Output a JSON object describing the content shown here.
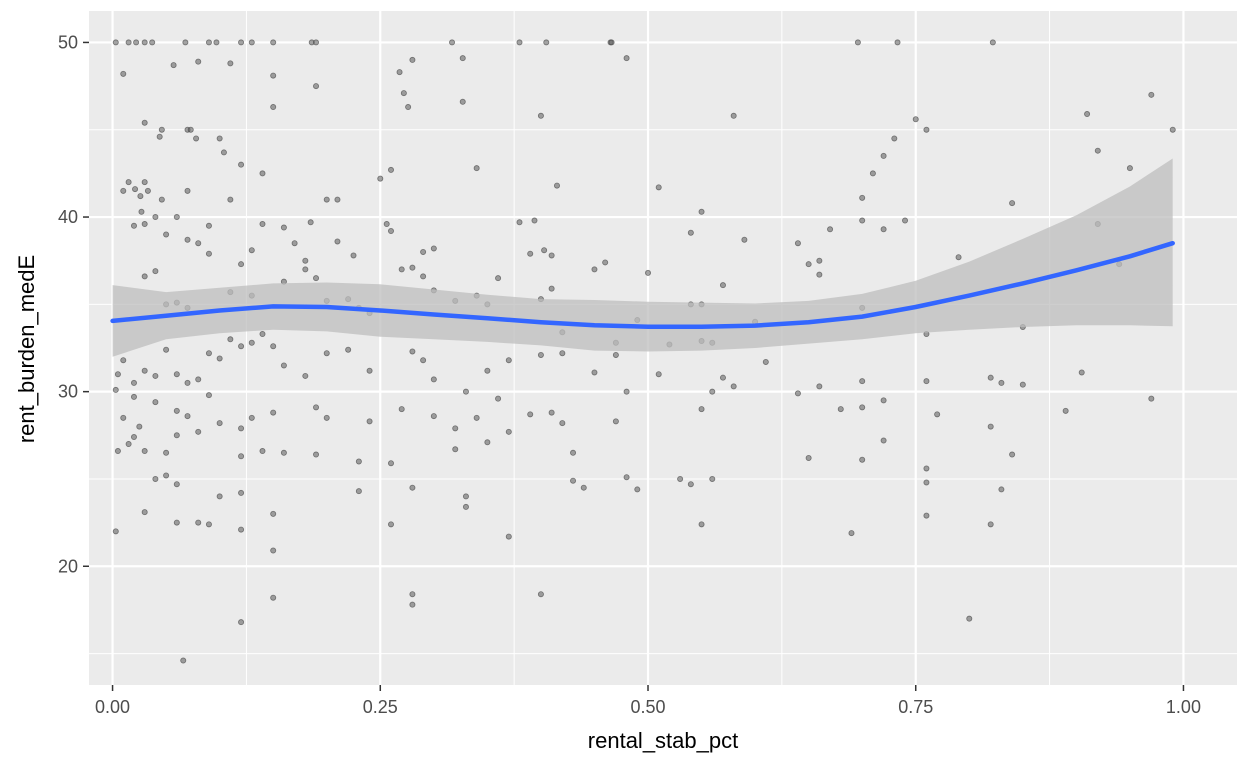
{
  "chart_data": {
    "type": "scatter",
    "title": "",
    "xlabel": "rental_stab_pct",
    "ylabel": "rent_burden_medE",
    "xlim": [
      -0.022,
      1.05
    ],
    "ylim": [
      13.2,
      51.8
    ],
    "x_ticks": [
      0,
      0.25,
      0.5,
      0.75,
      1
    ],
    "x_tick_labels": [
      "0.00",
      "0.25",
      "0.50",
      "0.75",
      "1.00"
    ],
    "y_ticks": [
      20,
      30,
      40,
      50
    ],
    "y_tick_labels": [
      "20",
      "30",
      "40",
      "50"
    ],
    "grid": true,
    "legend": "none",
    "colors": {
      "panel": "#ebebeb",
      "grid": "#ffffff",
      "points": "#595959",
      "smooth_line": "#3366ff",
      "ribbon": "#bebebe"
    },
    "points": [
      [
        0.003,
        50
      ],
      [
        0.015,
        50
      ],
      [
        0.022,
        50
      ],
      [
        0.03,
        50
      ],
      [
        0.037,
        50
      ],
      [
        0.068,
        50
      ],
      [
        0.09,
        50
      ],
      [
        0.097,
        50
      ],
      [
        0.12,
        50
      ],
      [
        0.13,
        50
      ],
      [
        0.15,
        50
      ],
      [
        0.186,
        50
      ],
      [
        0.19,
        50
      ],
      [
        0.317,
        50
      ],
      [
        0.38,
        50
      ],
      [
        0.405,
        50
      ],
      [
        0.465,
        50
      ],
      [
        0.466,
        50
      ],
      [
        0.696,
        50
      ],
      [
        0.733,
        50
      ],
      [
        0.822,
        50
      ],
      [
        0.01,
        48.2
      ],
      [
        0.057,
        48.7
      ],
      [
        0.08,
        48.9
      ],
      [
        0.11,
        48.8
      ],
      [
        0.15,
        48.1
      ],
      [
        0.19,
        47.5
      ],
      [
        0.268,
        48.3
      ],
      [
        0.28,
        49
      ],
      [
        0.327,
        49.1
      ],
      [
        0.48,
        49.1
      ],
      [
        0.97,
        47
      ],
      [
        0.03,
        45.4
      ],
      [
        0.044,
        44.6
      ],
      [
        0.046,
        45
      ],
      [
        0.07,
        45
      ],
      [
        0.073,
        45
      ],
      [
        0.078,
        44.5
      ],
      [
        0.1,
        44.5
      ],
      [
        0.104,
        43.7
      ],
      [
        0.12,
        43
      ],
      [
        0.15,
        46.3
      ],
      [
        0.272,
        47.1
      ],
      [
        0.276,
        46.3
      ],
      [
        0.327,
        46.6
      ],
      [
        0.4,
        45.8
      ],
      [
        0.58,
        45.8
      ],
      [
        0.75,
        45.6
      ],
      [
        0.76,
        45
      ],
      [
        0.91,
        45.9
      ],
      [
        0.99,
        45
      ],
      [
        0.01,
        41.5
      ],
      [
        0.015,
        42
      ],
      [
        0.021,
        41.6
      ],
      [
        0.026,
        41.2
      ],
      [
        0.027,
        40.3
      ],
      [
        0.03,
        42
      ],
      [
        0.033,
        41.5
      ],
      [
        0.04,
        40
      ],
      [
        0.046,
        41
      ],
      [
        0.06,
        40
      ],
      [
        0.07,
        41.5
      ],
      [
        0.09,
        39.5
      ],
      [
        0.11,
        41
      ],
      [
        0.14,
        42.5
      ],
      [
        0.2,
        41
      ],
      [
        0.21,
        41
      ],
      [
        0.25,
        42.2
      ],
      [
        0.26,
        42.7
      ],
      [
        0.34,
        42.8
      ],
      [
        0.415,
        41.8
      ],
      [
        0.51,
        41.7
      ],
      [
        0.73,
        44.5
      ],
      [
        0.72,
        43.5
      ],
      [
        0.71,
        42.5
      ],
      [
        0.7,
        41.1
      ],
      [
        0.84,
        40.8
      ],
      [
        0.92,
        43.8
      ],
      [
        0.95,
        42.8
      ],
      [
        0.02,
        39.5
      ],
      [
        0.03,
        39.6
      ],
      [
        0.05,
        39
      ],
      [
        0.07,
        38.7
      ],
      [
        0.08,
        38.5
      ],
      [
        0.09,
        37.9
      ],
      [
        0.12,
        37.3
      ],
      [
        0.13,
        38.1
      ],
      [
        0.14,
        39.6
      ],
      [
        0.16,
        39.4
      ],
      [
        0.17,
        38.5
      ],
      [
        0.18,
        37.5
      ],
      [
        0.185,
        39.7
      ],
      [
        0.21,
        38.6
      ],
      [
        0.225,
        37.8
      ],
      [
        0.256,
        39.6
      ],
      [
        0.26,
        39.2
      ],
      [
        0.29,
        38
      ],
      [
        0.3,
        38.2
      ],
      [
        0.36,
        36.5
      ],
      [
        0.38,
        39.7
      ],
      [
        0.39,
        37.9
      ],
      [
        0.394,
        39.8
      ],
      [
        0.403,
        38.1
      ],
      [
        0.41,
        37.8
      ],
      [
        0.45,
        37
      ],
      [
        0.46,
        37.4
      ],
      [
        0.54,
        39.1
      ],
      [
        0.55,
        40.3
      ],
      [
        0.59,
        38.7
      ],
      [
        0.64,
        38.5
      ],
      [
        0.65,
        37.3
      ],
      [
        0.66,
        37.5
      ],
      [
        0.67,
        39.3
      ],
      [
        0.7,
        39.8
      ],
      [
        0.72,
        39.3
      ],
      [
        0.74,
        39.8
      ],
      [
        0.79,
        37.7
      ],
      [
        0.92,
        39.6
      ],
      [
        0.94,
        37.3
      ],
      [
        0.03,
        36.6
      ],
      [
        0.04,
        36.9
      ],
      [
        0.05,
        35
      ],
      [
        0.06,
        35.1
      ],
      [
        0.07,
        34.8
      ],
      [
        0.11,
        35.7
      ],
      [
        0.13,
        35.5
      ],
      [
        0.16,
        36.3
      ],
      [
        0.18,
        37
      ],
      [
        0.19,
        36.5
      ],
      [
        0.2,
        35.2
      ],
      [
        0.22,
        35.3
      ],
      [
        0.23,
        34.8
      ],
      [
        0.24,
        34.5
      ],
      [
        0.27,
        37
      ],
      [
        0.28,
        37.1
      ],
      [
        0.29,
        36.6
      ],
      [
        0.3,
        35.8
      ],
      [
        0.32,
        35.2
      ],
      [
        0.34,
        35.5
      ],
      [
        0.35,
        35
      ],
      [
        0.4,
        35.3
      ],
      [
        0.41,
        35.9
      ],
      [
        0.42,
        33.4
      ],
      [
        0.47,
        32.8
      ],
      [
        0.49,
        34.1
      ],
      [
        0.5,
        36.8
      ],
      [
        0.52,
        32.7
      ],
      [
        0.54,
        35
      ],
      [
        0.55,
        35
      ],
      [
        0.56,
        32.8
      ],
      [
        0.57,
        36.1
      ],
      [
        0.6,
        34
      ],
      [
        0.66,
        36.7
      ],
      [
        0.7,
        34.8
      ],
      [
        0.76,
        33.3
      ],
      [
        0.85,
        33.7
      ],
      [
        0.005,
        31
      ],
      [
        0.01,
        31.8
      ],
      [
        0.02,
        30.5
      ],
      [
        0.03,
        31.2
      ],
      [
        0.04,
        30.9
      ],
      [
        0.05,
        32.4
      ],
      [
        0.06,
        31
      ],
      [
        0.07,
        30.5
      ],
      [
        0.08,
        30.7
      ],
      [
        0.09,
        32.2
      ],
      [
        0.1,
        31.9
      ],
      [
        0.11,
        33
      ],
      [
        0.12,
        32.6
      ],
      [
        0.13,
        32.8
      ],
      [
        0.14,
        33.3
      ],
      [
        0.15,
        32.6
      ],
      [
        0.16,
        31.5
      ],
      [
        0.18,
        30.9
      ],
      [
        0.2,
        32.2
      ],
      [
        0.22,
        32.4
      ],
      [
        0.24,
        31.2
      ],
      [
        0.28,
        32.3
      ],
      [
        0.29,
        31.8
      ],
      [
        0.3,
        30.7
      ],
      [
        0.33,
        30
      ],
      [
        0.35,
        31.2
      ],
      [
        0.37,
        31.8
      ],
      [
        0.4,
        32.1
      ],
      [
        0.42,
        32.2
      ],
      [
        0.45,
        31.1
      ],
      [
        0.47,
        32.1
      ],
      [
        0.51,
        31
      ],
      [
        0.55,
        32.9
      ],
      [
        0.57,
        30.8
      ],
      [
        0.58,
        30.3
      ],
      [
        0.61,
        31.7
      ],
      [
        0.64,
        29.9
      ],
      [
        0.66,
        30.3
      ],
      [
        0.7,
        30.6
      ],
      [
        0.76,
        30.6
      ],
      [
        0.82,
        30.8
      ],
      [
        0.83,
        30.5
      ],
      [
        0.85,
        30.4
      ],
      [
        0.905,
        31.1
      ],
      [
        0.003,
        30.1
      ],
      [
        0.01,
        28.5
      ],
      [
        0.02,
        29.7
      ],
      [
        0.025,
        28
      ],
      [
        0.04,
        29.4
      ],
      [
        0.06,
        28.9
      ],
      [
        0.07,
        28.6
      ],
      [
        0.09,
        29.8
      ],
      [
        0.1,
        28.2
      ],
      [
        0.12,
        27.9
      ],
      [
        0.13,
        28.5
      ],
      [
        0.15,
        28.8
      ],
      [
        0.19,
        29.1
      ],
      [
        0.2,
        28.5
      ],
      [
        0.24,
        28.3
      ],
      [
        0.27,
        29
      ],
      [
        0.3,
        28.6
      ],
      [
        0.32,
        27.9
      ],
      [
        0.34,
        28.5
      ],
      [
        0.36,
        29.6
      ],
      [
        0.39,
        28.7
      ],
      [
        0.41,
        28.8
      ],
      [
        0.42,
        28.2
      ],
      [
        0.47,
        28.3
      ],
      [
        0.48,
        30
      ],
      [
        0.55,
        29
      ],
      [
        0.56,
        30
      ],
      [
        0.68,
        29
      ],
      [
        0.7,
        29.1
      ],
      [
        0.72,
        29.5
      ],
      [
        0.77,
        28.7
      ],
      [
        0.82,
        28
      ],
      [
        0.89,
        28.9
      ],
      [
        0.97,
        29.6
      ],
      [
        0.005,
        26.6
      ],
      [
        0.015,
        27
      ],
      [
        0.02,
        27.4
      ],
      [
        0.03,
        26.6
      ],
      [
        0.05,
        26.5
      ],
      [
        0.06,
        27.5
      ],
      [
        0.08,
        27.7
      ],
      [
        0.12,
        26.3
      ],
      [
        0.14,
        26.6
      ],
      [
        0.16,
        26.5
      ],
      [
        0.19,
        26.4
      ],
      [
        0.23,
        26
      ],
      [
        0.26,
        25.9
      ],
      [
        0.32,
        26.7
      ],
      [
        0.35,
        27.1
      ],
      [
        0.37,
        27.7
      ],
      [
        0.43,
        26.5
      ],
      [
        0.65,
        26.2
      ],
      [
        0.7,
        26.1
      ],
      [
        0.72,
        27.2
      ],
      [
        0.76,
        25.6
      ],
      [
        0.84,
        26.4
      ],
      [
        0.04,
        25
      ],
      [
        0.05,
        25.2
      ],
      [
        0.06,
        24.7
      ],
      [
        0.1,
        24
      ],
      [
        0.12,
        24.2
      ],
      [
        0.23,
        24.3
      ],
      [
        0.28,
        24.5
      ],
      [
        0.33,
        24
      ],
      [
        0.43,
        24.9
      ],
      [
        0.44,
        24.5
      ],
      [
        0.48,
        25.1
      ],
      [
        0.49,
        24.4
      ],
      [
        0.53,
        25
      ],
      [
        0.54,
        24.7
      ],
      [
        0.56,
        25
      ],
      [
        0.76,
        24.8
      ],
      [
        0.83,
        24.4
      ],
      [
        0.003,
        22
      ],
      [
        0.03,
        23.1
      ],
      [
        0.06,
        22.5
      ],
      [
        0.08,
        22.5
      ],
      [
        0.09,
        22.4
      ],
      [
        0.12,
        22.1
      ],
      [
        0.15,
        23
      ],
      [
        0.26,
        22.4
      ],
      [
        0.33,
        23.4
      ],
      [
        0.37,
        21.7
      ],
      [
        0.55,
        22.4
      ],
      [
        0.69,
        21.9
      ],
      [
        0.76,
        22.9
      ],
      [
        0.82,
        22.4
      ],
      [
        0.15,
        20.9
      ],
      [
        0.15,
        18.2
      ],
      [
        0.28,
        18.4
      ],
      [
        0.28,
        17.8
      ],
      [
        0.4,
        18.4
      ],
      [
        0.12,
        16.8
      ],
      [
        0.066,
        14.6
      ],
      [
        0.8,
        17
      ]
    ],
    "smooth_line": {
      "x": [
        0,
        0.05,
        0.1,
        0.15,
        0.2,
        0.25,
        0.3,
        0.35,
        0.4,
        0.45,
        0.5,
        0.55,
        0.6,
        0.65,
        0.7,
        0.75,
        0.8,
        0.85,
        0.9,
        0.95,
        0.99
      ],
      "y": [
        34.05,
        34.35,
        34.65,
        34.88,
        34.85,
        34.65,
        34.42,
        34.2,
        33.98,
        33.8,
        33.72,
        33.72,
        33.78,
        33.98,
        34.3,
        34.85,
        35.5,
        36.2,
        36.95,
        37.75,
        38.5
      ]
    },
    "confidence_band": {
      "x": [
        0,
        0.05,
        0.1,
        0.15,
        0.2,
        0.25,
        0.3,
        0.35,
        0.4,
        0.45,
        0.5,
        0.55,
        0.6,
        0.65,
        0.7,
        0.75,
        0.8,
        0.85,
        0.9,
        0.95,
        0.99
      ],
      "lower": [
        32.0,
        33.0,
        33.35,
        33.55,
        33.45,
        33.15,
        33.0,
        32.85,
        32.65,
        32.35,
        32.3,
        32.35,
        32.5,
        32.75,
        33.0,
        33.35,
        33.55,
        33.7,
        33.8,
        33.8,
        33.75
      ],
      "upper": [
        36.1,
        35.7,
        35.95,
        36.2,
        36.25,
        36.15,
        35.85,
        35.55,
        35.3,
        35.25,
        35.15,
        35.1,
        35.05,
        35.2,
        35.6,
        36.35,
        37.45,
        38.75,
        40.1,
        41.75,
        43.35
      ]
    }
  }
}
